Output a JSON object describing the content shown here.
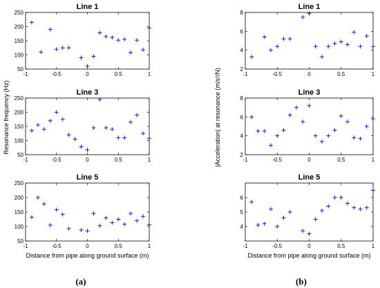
{
  "marker_color": "#0000ff",
  "chart_data": [
    {
      "type": "scatter",
      "title": "Line 1",
      "xlim": [
        -1,
        1
      ],
      "ylim": [
        50,
        250
      ],
      "xticks": [
        -1,
        -0.5,
        0,
        0.5,
        1
      ],
      "xtick_labels": [
        "-1",
        "-0.5",
        "0",
        "0.5",
        "1"
      ],
      "yticks": [
        50,
        100,
        150,
        200,
        250
      ],
      "ytick_labels": [
        "50",
        "100",
        "150",
        "200",
        "250"
      ],
      "x": [
        -0.9,
        -0.75,
        -0.6,
        -0.5,
        -0.4,
        -0.3,
        -0.1,
        0.0,
        0.1,
        0.2,
        0.3,
        0.4,
        0.5,
        0.6,
        0.7,
        0.8,
        0.9,
        1.0
      ],
      "y": [
        215,
        110,
        190,
        120,
        125,
        125,
        90,
        60,
        95,
        178,
        165,
        162,
        152,
        155,
        108,
        152,
        118,
        195
      ]
    },
    {
      "type": "scatter",
      "title": "Line 3",
      "xlim": [
        -1,
        1
      ],
      "ylim": [
        50,
        250
      ],
      "xticks": [
        -1,
        -0.5,
        0,
        0.5,
        1
      ],
      "xtick_labels": [
        "-1",
        "-0.5",
        "0",
        "0.5",
        "1"
      ],
      "yticks": [
        50,
        100,
        150,
        200,
        250
      ],
      "ytick_labels": [
        "50",
        "100",
        "150",
        "200",
        "250"
      ],
      "x": [
        -0.9,
        -0.8,
        -0.7,
        -0.6,
        -0.5,
        -0.4,
        -0.3,
        -0.2,
        -0.1,
        0.0,
        0.1,
        0.2,
        0.3,
        0.4,
        0.5,
        0.6,
        0.7,
        0.8,
        0.9,
        1.0
      ],
      "y": [
        135,
        155,
        140,
        170,
        200,
        175,
        120,
        105,
        78,
        67,
        145,
        245,
        145,
        140,
        110,
        110,
        165,
        190,
        125,
        108
      ]
    },
    {
      "type": "scatter",
      "title": "Line 5",
      "xlim": [
        -1,
        1
      ],
      "ylim": [
        50,
        250
      ],
      "xticks": [
        -1,
        -0.5,
        0,
        0.5,
        1
      ],
      "xtick_labels": [
        "-1",
        "-0.5",
        "0",
        "0.5",
        "1"
      ],
      "yticks": [
        50,
        100,
        150,
        200,
        250
      ],
      "ytick_labels": [
        "50",
        "100",
        "150",
        "200",
        "250"
      ],
      "xlabel": "Distance from pipe along ground surface (m)",
      "x": [
        -0.9,
        -0.8,
        -0.7,
        -0.6,
        -0.5,
        -0.4,
        -0.3,
        -0.1,
        0.0,
        0.1,
        0.2,
        0.3,
        0.4,
        0.5,
        0.6,
        0.7,
        0.8,
        0.9,
        1.0
      ],
      "y": [
        132,
        200,
        178,
        105,
        158,
        142,
        93,
        88,
        85,
        145,
        103,
        130,
        113,
        125,
        108,
        145,
        120,
        135,
        106
      ]
    },
    {
      "type": "scatter",
      "title": "Line 1",
      "xlim": [
        -1,
        1
      ],
      "ylim": [
        2,
        8
      ],
      "xticks": [
        -1,
        -0.5,
        0,
        0.5,
        1
      ],
      "xtick_labels": [
        "-1",
        "-0.5",
        "0",
        "0.5",
        "1"
      ],
      "yticks": [
        2,
        4,
        6,
        8
      ],
      "ytick_labels": [
        "2",
        "4",
        "6",
        "8"
      ],
      "x": [
        -0.9,
        -0.7,
        -0.6,
        -0.5,
        -0.4,
        -0.3,
        -0.1,
        0.0,
        0.1,
        0.2,
        0.3,
        0.4,
        0.5,
        0.6,
        0.7,
        0.8,
        0.9,
        1.0
      ],
      "y": [
        3.3,
        5.4,
        4.0,
        4.4,
        5.2,
        5.2,
        7.5,
        7.9,
        4.4,
        3.3,
        4.4,
        4.7,
        4.9,
        4.6,
        5.9,
        4.4,
        5.5,
        4.4
      ]
    },
    {
      "type": "scatter",
      "title": "Line 3",
      "xlim": [
        -1,
        1
      ],
      "ylim": [
        2,
        8
      ],
      "xticks": [
        -1,
        -0.5,
        0,
        0.5,
        1
      ],
      "xtick_labels": [
        "-1",
        "-0.5",
        "0",
        "0.5",
        "1"
      ],
      "yticks": [
        2,
        4,
        6,
        8
      ],
      "ytick_labels": [
        "2",
        "4",
        "6",
        "8"
      ],
      "x": [
        -0.9,
        -0.8,
        -0.7,
        -0.6,
        -0.5,
        -0.4,
        -0.3,
        -0.2,
        -0.1,
        0.0,
        0.1,
        0.2,
        0.3,
        0.4,
        0.5,
        0.6,
        0.7,
        0.8,
        0.9,
        1.0
      ],
      "y": [
        6.0,
        4.5,
        4.5,
        3.0,
        4.0,
        4.6,
        6.2,
        7.0,
        5.5,
        7.2,
        4.0,
        3.4,
        4.0,
        4.6,
        6.1,
        5.5,
        3.8,
        3.7,
        5.0,
        5.8
      ]
    },
    {
      "type": "scatter",
      "title": "Line 5",
      "xlim": [
        -1,
        1
      ],
      "ylim": [
        3,
        7
      ],
      "xticks": [
        -1,
        -0.5,
        0,
        0.5,
        1
      ],
      "xtick_labels": [
        "-1",
        "-0.5",
        "0",
        "0.5",
        "1"
      ],
      "yticks": [
        4,
        5,
        6
      ],
      "ytick_labels": [
        "4",
        "5",
        "6"
      ],
      "xlabel": "Distance from pipe along ground surface (m)",
      "x": [
        -0.9,
        -0.8,
        -0.7,
        -0.6,
        -0.5,
        -0.4,
        -0.3,
        -0.1,
        0.0,
        0.1,
        0.2,
        0.3,
        0.4,
        0.5,
        0.6,
        0.7,
        0.8,
        0.9,
        1.0
      ],
      "y": [
        5.7,
        4.1,
        4.2,
        5.2,
        4.0,
        4.6,
        5.0,
        3.7,
        3.5,
        4.5,
        5.1,
        5.4,
        6.0,
        6.0,
        5.6,
        5.3,
        5.2,
        5.3,
        6.5
      ]
    }
  ],
  "labels": {
    "left_ylabel": "Resonance frequency (Hz)",
    "right_ylabel": "|Acceleration| at resonance (m/s²/N)",
    "caption_a": "(a)",
    "caption_b": "(b)"
  }
}
